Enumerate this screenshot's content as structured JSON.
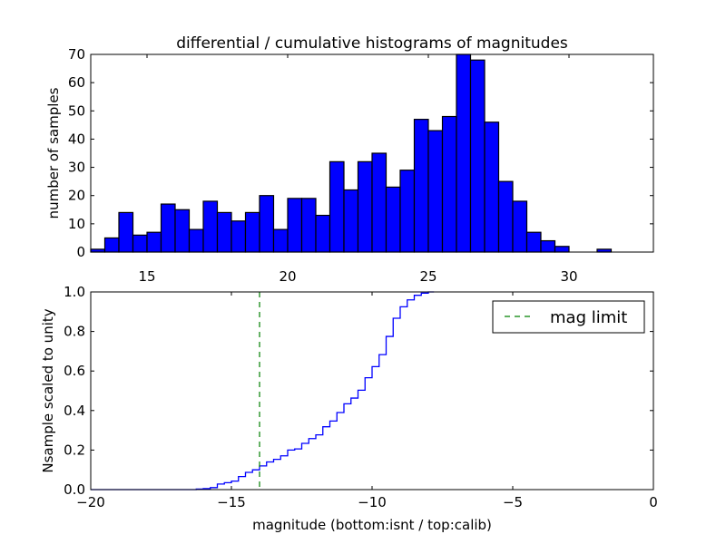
{
  "chart_data": [
    {
      "type": "bar",
      "title": "differential / cumulative histograms of magnitudes",
      "xlabel": "",
      "ylabel": "number of samples",
      "xlim": [
        13,
        33
      ],
      "ylim": [
        0,
        70
      ],
      "bin_start": 13,
      "bin_width": 0.5,
      "values": [
        1,
        5,
        14,
        6,
        7,
        17,
        15,
        8,
        18,
        14,
        11,
        14,
        20,
        8,
        19,
        19,
        13,
        32,
        22,
        32,
        35,
        23,
        29,
        47,
        43,
        48,
        70,
        68,
        46,
        25,
        18,
        7,
        4,
        2,
        0,
        0,
        1,
        0,
        0,
        0
      ],
      "xticks": [
        "15",
        "20",
        "25",
        "30"
      ],
      "xtick_values": [
        15,
        20,
        25,
        30
      ],
      "yticks": [
        "0",
        "10",
        "20",
        "30",
        "40",
        "50",
        "60",
        "70"
      ],
      "ytick_values": [
        0,
        10,
        20,
        30,
        40,
        50,
        60,
        70
      ],
      "xticks_position": "bottom",
      "color": "#0000ff"
    },
    {
      "type": "line",
      "step": true,
      "xlabel": "magnitude (bottom:isnt / top:calib)",
      "ylabel": "Nsample scaled to unity",
      "xlim": [
        -20,
        0
      ],
      "ylim": [
        0,
        1
      ],
      "step_start": -16.0,
      "step_width": 0.25,
      "pre_value": 0.003,
      "values": [
        0.005,
        0.01,
        0.028,
        0.035,
        0.043,
        0.066,
        0.087,
        0.1,
        0.12,
        0.14,
        0.153,
        0.171,
        0.2,
        0.206,
        0.234,
        0.258,
        0.277,
        0.318,
        0.347,
        0.39,
        0.434,
        0.463,
        0.503,
        0.566,
        0.622,
        0.683,
        0.775,
        0.867,
        0.925,
        0.96,
        0.983,
        0.994
      ],
      "end_value": 1.0,
      "end_x": -7.8,
      "xticks": [
        "−20",
        "−15",
        "−10",
        "−5",
        "0"
      ],
      "xtick_values": [
        -20,
        -15,
        -10,
        -5,
        0
      ],
      "yticks": [
        "0.0",
        "0.2",
        "0.4",
        "0.6",
        "0.8",
        "1.0"
      ],
      "ytick_values": [
        0,
        0.2,
        0.4,
        0.6,
        0.8,
        1.0
      ],
      "line_color": "#0000ff",
      "vline": {
        "x": -14,
        "color": "#008000",
        "style": "dashed",
        "label": "mag limit"
      },
      "legend": {
        "position": "top-right",
        "entries": [
          "mag limit"
        ]
      }
    }
  ]
}
